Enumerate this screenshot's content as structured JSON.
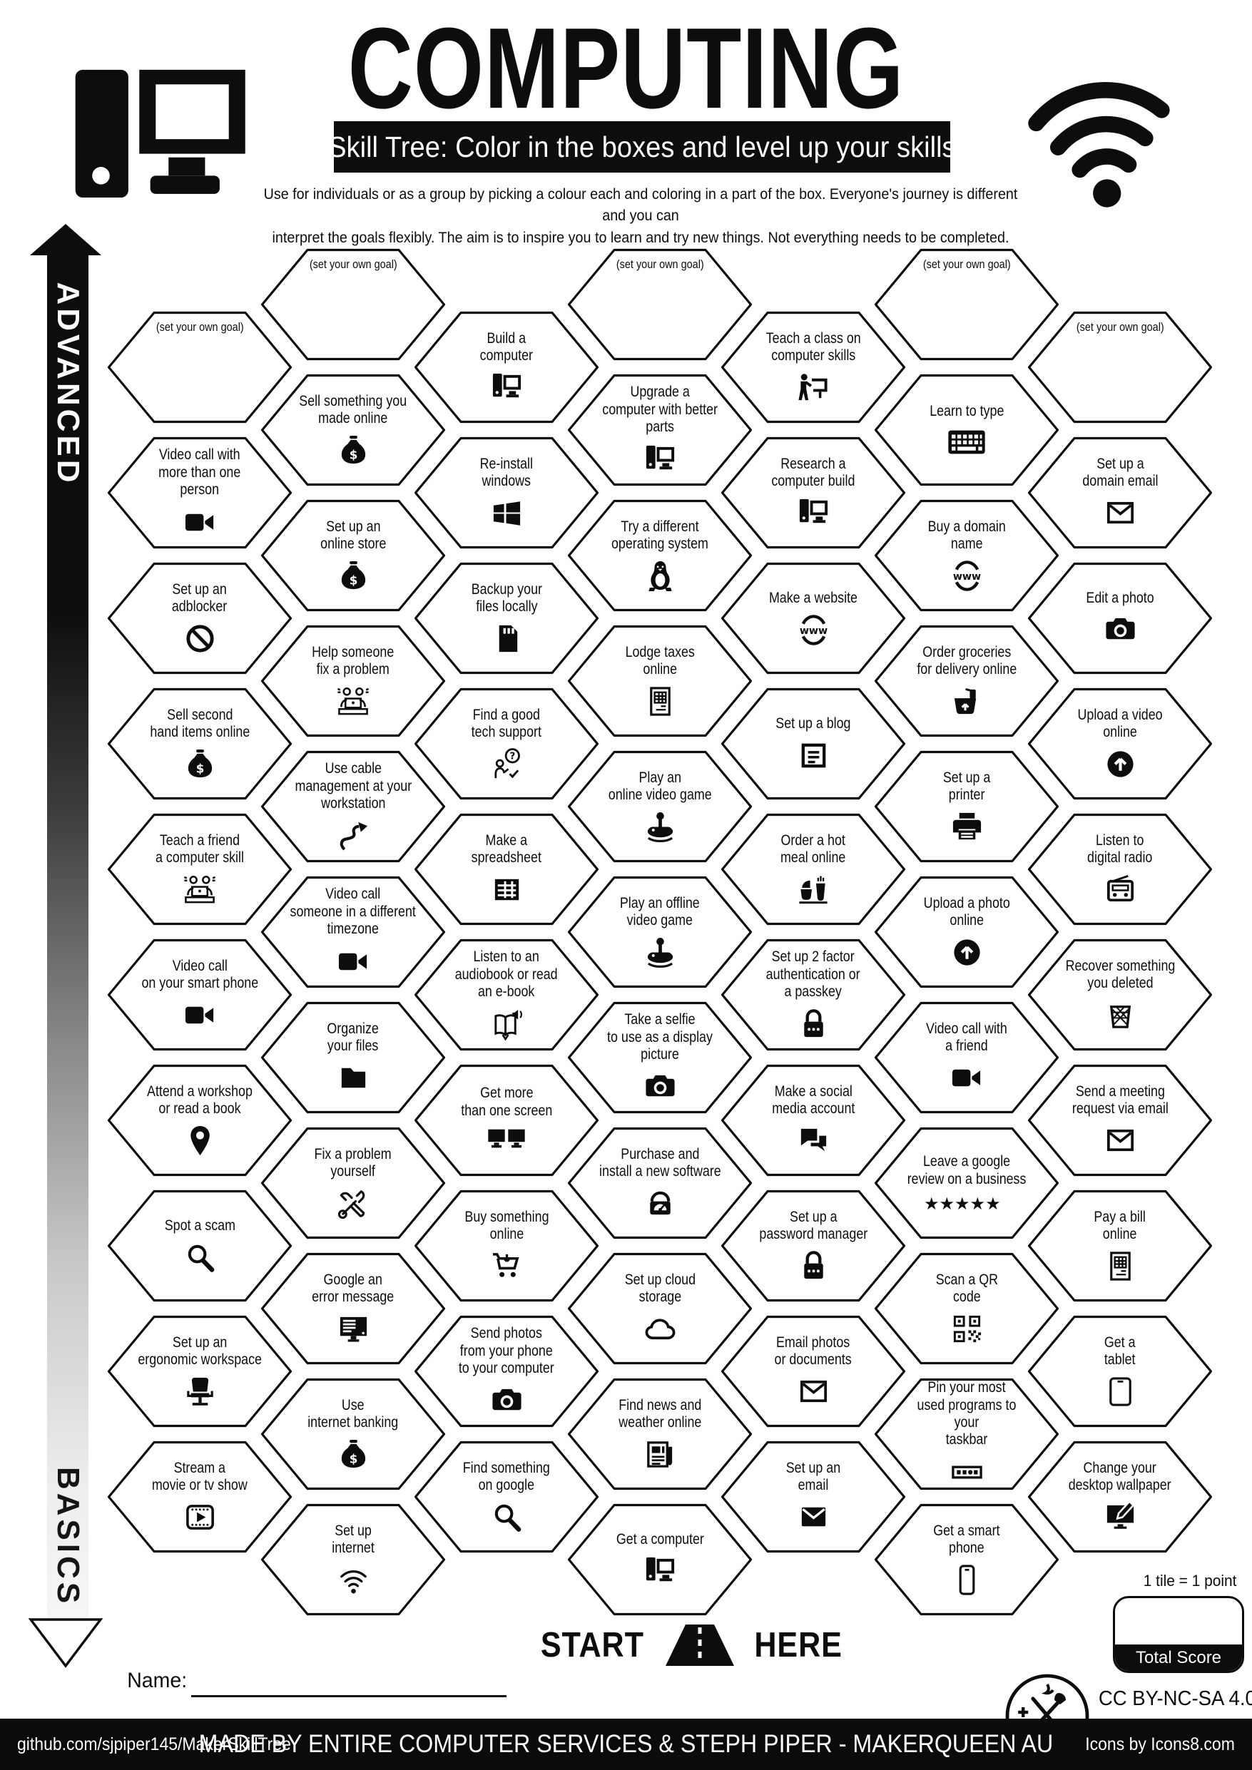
{
  "page": {
    "title": "COMPUTING",
    "subtitle": "Skill Tree:  Color in the boxes and level up your skills",
    "description": "Use for individuals or as a group by picking a colour each and coloring in a part of the box.  Everyone's journey is different and you can\ninterpret the goals flexibly.  The aim is to inspire you to learn and try new things. Not everything needs to be completed.",
    "advanced": "ADVANCED",
    "basics": "BASICS"
  },
  "start": {
    "start": "START",
    "here": "HERE"
  },
  "score": {
    "note": "1 tile = 1 point",
    "label": "Total Score",
    "value": ""
  },
  "name_label": "Name:",
  "license": "CC BY-NC-SA 4.0",
  "footer": {
    "left": "github.com/sjpiper145/MakerSkillTree",
    "center": "MADE BY ENTIRE COMPUTER SERVICES & STEPH PIPER  -  MAKERQUEEN AU",
    "right": "Icons by Icons8.com"
  },
  "colors": {
    "ink": "#0d0d0d",
    "bar": "#0b0b0b"
  },
  "hexes": [
    {
      "col": 1,
      "row": 0,
      "label": "(set your own goal)",
      "icon": null,
      "goal": true
    },
    {
      "col": 1,
      "row": 1,
      "label": "Video call with\nmore than one\nperson",
      "icon": "videocam"
    },
    {
      "col": 1,
      "row": 2,
      "label": "Set up an\nadblocker",
      "icon": "adblock"
    },
    {
      "col": 1,
      "row": 3,
      "label": "Sell second\nhand items online",
      "icon": "moneybag"
    },
    {
      "col": 1,
      "row": 4,
      "label": "Teach a friend\na computer skill",
      "icon": "helpdesk"
    },
    {
      "col": 1,
      "row": 5,
      "label": "Video call\non your smart phone",
      "icon": "videocam"
    },
    {
      "col": 1,
      "row": 6,
      "label": "Attend a workshop\nor read a book",
      "icon": "pin"
    },
    {
      "col": 1,
      "row": 7,
      "label": "Spot a scam",
      "icon": "magnifier"
    },
    {
      "col": 1,
      "row": 8,
      "label": "Set up an\nergonomic workspace",
      "icon": "chair"
    },
    {
      "col": 1,
      "row": 9,
      "label": "Stream a\nmovie or tv show",
      "icon": "filmplayer"
    },
    {
      "col": 2,
      "row": 0,
      "label": "(set your own goal)",
      "icon": null,
      "goal": true
    },
    {
      "col": 2,
      "row": 1,
      "label": "Sell something you\nmade online",
      "icon": "moneybag"
    },
    {
      "col": 2,
      "row": 2,
      "label": "Set up an\nonline store",
      "icon": "moneybag"
    },
    {
      "col": 2,
      "row": 3,
      "label": "Help someone\nfix a problem",
      "icon": "helpdesk"
    },
    {
      "col": 2,
      "row": 4,
      "label": "Use cable\nmanagement at your\nworkstation",
      "icon": "cable"
    },
    {
      "col": 2,
      "row": 5,
      "label": "Video call\nsomeone in a different\ntimezone",
      "icon": "videocam"
    },
    {
      "col": 2,
      "row": 6,
      "label": "Organize\nyour files",
      "icon": "folder"
    },
    {
      "col": 2,
      "row": 7,
      "label": "Fix a problem\nyourself",
      "icon": "tools"
    },
    {
      "col": 2,
      "row": 8,
      "label": "Google an\nerror message",
      "icon": "monitortext"
    },
    {
      "col": 2,
      "row": 9,
      "label": "Use\ninternet banking",
      "icon": "moneybag"
    },
    {
      "col": 2,
      "row": 10,
      "label": "Set up\ninternet",
      "icon": "wifi"
    },
    {
      "col": 3,
      "row": 0,
      "label": "Build a\ncomputer",
      "icon": "desktop"
    },
    {
      "col": 3,
      "row": 1,
      "label": "Re-install\nwindows",
      "icon": "windows"
    },
    {
      "col": 3,
      "row": 2,
      "label": "Backup your\nfiles locally",
      "icon": "sdcard"
    },
    {
      "col": 3,
      "row": 3,
      "label": "Find a good\ntech support",
      "icon": "support"
    },
    {
      "col": 3,
      "row": 4,
      "label": "Make a\nspreadsheet",
      "icon": "spreadsheet"
    },
    {
      "col": 3,
      "row": 5,
      "label": "Listen to an\naudiobook or read\nan e-book",
      "icon": "audiobook"
    },
    {
      "col": 3,
      "row": 6,
      "label": "Get more\nthan one screen",
      "icon": "dualscreen"
    },
    {
      "col": 3,
      "row": 7,
      "label": "Buy something\nonline",
      "icon": "cart"
    },
    {
      "col": 3,
      "row": 8,
      "label": "Send photos\nfrom your phone\nto your computer",
      "icon": "camera"
    },
    {
      "col": 3,
      "row": 9,
      "label": "Find something\non google",
      "icon": "magnifier"
    },
    {
      "col": 4,
      "row": 0,
      "label": "(set your own goal)",
      "icon": null,
      "goal": true
    },
    {
      "col": 4,
      "row": 1,
      "label": "Upgrade a\ncomputer with better\nparts",
      "icon": "desktop"
    },
    {
      "col": 4,
      "row": 2,
      "label": "Try a different\noperating system",
      "icon": "penguin"
    },
    {
      "col": 4,
      "row": 3,
      "label": "Lodge taxes\nonline",
      "icon": "taxdoc"
    },
    {
      "col": 4,
      "row": 4,
      "label": "Play an\nonline video game",
      "icon": "joystick"
    },
    {
      "col": 4,
      "row": 5,
      "label": "Play an offline\nvideo game",
      "icon": "joystick"
    },
    {
      "col": 4,
      "row": 6,
      "label": "Take a selfie\nto use as a display\npicture",
      "icon": "camera"
    },
    {
      "col": 4,
      "row": 7,
      "label": "Purchase and\ninstall a new software",
      "icon": "installer"
    },
    {
      "col": 4,
      "row": 8,
      "label": "Set up cloud\nstorage",
      "icon": "cloud"
    },
    {
      "col": 4,
      "row": 9,
      "label": "Find news and\nweather online",
      "icon": "newspaper"
    },
    {
      "col": 4,
      "row": 10,
      "label": "Get a computer",
      "icon": "desktop"
    },
    {
      "col": 5,
      "row": 0,
      "label": "Teach a class on\ncomputer skills",
      "icon": "teach"
    },
    {
      "col": 5,
      "row": 1,
      "label": "Research a\ncomputer build",
      "icon": "desktop"
    },
    {
      "col": 5,
      "row": 2,
      "label": "Make a website",
      "icon": "www"
    },
    {
      "col": 5,
      "row": 3,
      "label": "Set up a blog",
      "icon": "blogdoc"
    },
    {
      "col": 5,
      "row": 4,
      "label": "Order a hot\nmeal online",
      "icon": "meal"
    },
    {
      "col": 5,
      "row": 5,
      "label": "Set up 2 factor\nauthentication or\na passkey",
      "icon": "padlock"
    },
    {
      "col": 5,
      "row": 6,
      "label": "Make a social\nmedia account",
      "icon": "chatbubbles"
    },
    {
      "col": 5,
      "row": 7,
      "label": "Set up a\npassword manager",
      "icon": "padlock"
    },
    {
      "col": 5,
      "row": 8,
      "label": "Email photos\nor documents",
      "icon": "envline"
    },
    {
      "col": 5,
      "row": 9,
      "label": "Set up an\nemail",
      "icon": "envfill"
    },
    {
      "col": 6,
      "row": 0,
      "label": "(set your own goal)",
      "icon": null,
      "goal": true
    },
    {
      "col": 6,
      "row": 1,
      "label": "Learn to type",
      "icon": "keyboard"
    },
    {
      "col": 6,
      "row": 2,
      "label": "Buy a domain\nname",
      "icon": "www"
    },
    {
      "col": 6,
      "row": 3,
      "label": "Order groceries\nfor delivery online",
      "icon": "grocery"
    },
    {
      "col": 6,
      "row": 4,
      "label": "Set up a\nprinter",
      "icon": "printer"
    },
    {
      "col": 6,
      "row": 5,
      "label": "Upload a photo\nonline",
      "icon": "uploadcircle"
    },
    {
      "col": 6,
      "row": 6,
      "label": "Video call with\na friend",
      "icon": "videocam"
    },
    {
      "col": 6,
      "row": 7,
      "label": "Leave a google\nreview on a business",
      "icon": "stars5"
    },
    {
      "col": 6,
      "row": 8,
      "label": "Scan a QR\ncode",
      "icon": "qr"
    },
    {
      "col": 6,
      "row": 9,
      "label": "Pin your most\nused programs to your\ntaskbar",
      "icon": "taskbar"
    },
    {
      "col": 6,
      "row": 10,
      "label": "Get a smart\nphone",
      "icon": "phone"
    },
    {
      "col": 7,
      "row": 0,
      "label": "(set your own goal)",
      "icon": null,
      "goal": true
    },
    {
      "col": 7,
      "row": 1,
      "label": "Set up a\ndomain email",
      "icon": "envline"
    },
    {
      "col": 7,
      "row": 2,
      "label": "Edit a photo",
      "icon": "camera"
    },
    {
      "col": 7,
      "row": 3,
      "label": "Upload a video\nonline",
      "icon": "uploadcircle"
    },
    {
      "col": 7,
      "row": 4,
      "label": "Listen to\ndigital radio",
      "icon": "radio"
    },
    {
      "col": 7,
      "row": 5,
      "label": "Recover something\nyou deleted",
      "icon": "trash"
    },
    {
      "col": 7,
      "row": 6,
      "label": "Send a meeting\nrequest via email",
      "icon": "envline"
    },
    {
      "col": 7,
      "row": 7,
      "label": "Pay a bill\nonline",
      "icon": "taxdoc"
    },
    {
      "col": 7,
      "row": 8,
      "label": "Get a\ntablet",
      "icon": "tablet"
    },
    {
      "col": 7,
      "row": 9,
      "label": "Change your\ndesktop wallpaper",
      "icon": "wallpaper"
    }
  ]
}
